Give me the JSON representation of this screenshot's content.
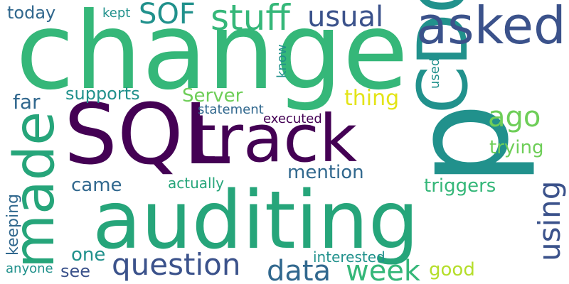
{
  "words": {
    "change": "change",
    "p": "p",
    "sql": "SQL",
    "auditing": "auditing",
    "track": "track",
    "cdc": "CDC",
    "made": "made",
    "asked": "asked",
    "stuff": "stuff",
    "usual": "usual",
    "question": "question",
    "week": "week",
    "data": "data",
    "sof": "SOF",
    "using": "using",
    "ago": "ago",
    "server": "Server",
    "mention": "mention",
    "triggers": "triggers",
    "supports": "supports",
    "thing": "thing",
    "trying": "trying",
    "today": "today",
    "far": "far",
    "came": "came",
    "one": "one",
    "see": "see",
    "good": "good",
    "keeping": "keeping",
    "statement": "statement",
    "executed": "executed",
    "actually": "actually",
    "interested": "interested",
    "anyone": "anyone",
    "know": "know",
    "used": "used",
    "kept": "kept"
  },
  "colors": {
    "dark_purple": "#440154",
    "indigo": "#3b528b",
    "slate": "#31688e",
    "teal": "#21918c",
    "green_teal": "#26a57a",
    "green": "#35b779",
    "light_green": "#6ece58",
    "yellow_green": "#b5de2b",
    "yellow": "#e3e418"
  }
}
